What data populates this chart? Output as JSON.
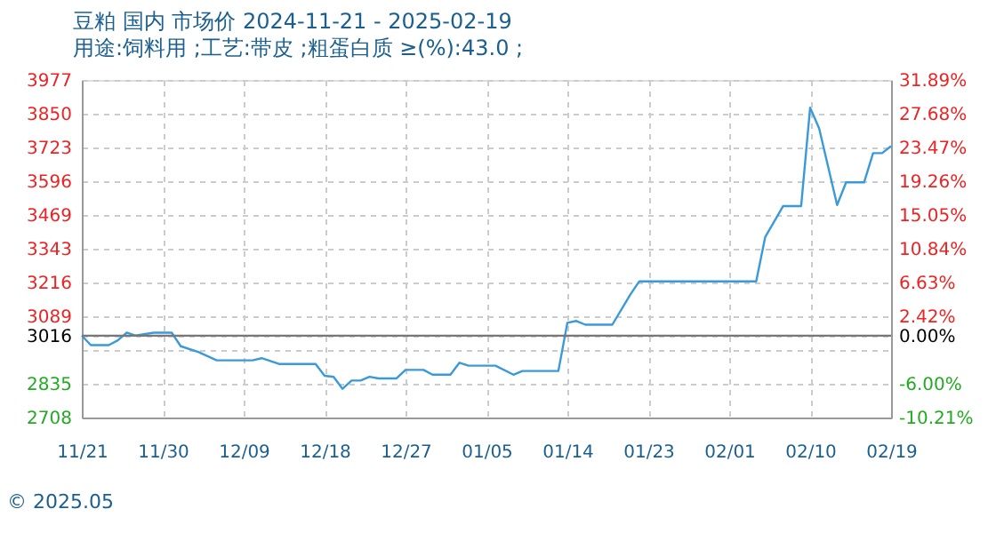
{
  "chart_data": {
    "type": "line",
    "title": "豆粕 国内 市场价 2024-11-21 - 2025-02-19",
    "subtitle": "用途:饲料用 ;工艺:带皮 ;粗蛋白质 ≥(%):43.0 ;",
    "annotations": [
      "© 2025.05"
    ],
    "x": [
      "2024-11-21",
      "2024-11-22",
      "2024-11-24",
      "2024-11-25",
      "2024-11-26",
      "2024-11-27",
      "2024-11-29",
      "2024-12-01",
      "2024-12-02",
      "2024-12-04",
      "2024-12-06",
      "2024-12-10",
      "2024-12-11",
      "2024-12-13",
      "2024-12-17",
      "2024-12-18",
      "2024-12-19",
      "2024-12-20",
      "2024-12-21",
      "2024-12-22",
      "2024-12-23",
      "2024-12-24",
      "2024-12-26",
      "2024-12-27",
      "2024-12-29",
      "2024-12-30",
      "2025-01-01",
      "2025-01-02",
      "2025-01-03",
      "2025-01-06",
      "2025-01-08",
      "2025-01-09",
      "2025-01-13",
      "2025-01-14",
      "2025-01-15",
      "2025-01-16",
      "2025-01-19",
      "2025-01-21",
      "2025-01-22",
      "2025-02-04",
      "2025-02-05",
      "2025-02-07",
      "2025-02-09",
      "2025-02-10",
      "2025-02-11",
      "2025-02-13",
      "2025-02-14",
      "2025-02-16",
      "2025-02-17",
      "2025-02-18",
      "2025-02-19"
    ],
    "series": [
      {
        "color": "#3a9ad9",
        "values": [
          3016,
          2980,
          2980,
          2998,
          3027,
          3016,
          3027,
          3027,
          2976,
          2954,
          2923,
          2923,
          2931,
          2909,
          2909,
          2865,
          2861,
          2816,
          2847,
          2847,
          2861,
          2855,
          2855,
          2887,
          2887,
          2869,
          2869,
          2914,
          2903,
          2903,
          2869,
          2883,
          2883,
          3064,
          3071,
          3057,
          3057,
          3170,
          3220,
          3220,
          3386,
          3503,
          3503,
          3873,
          3795,
          3507,
          3592,
          3592,
          3702,
          3702,
          3728
        ]
      }
    ],
    "xlim": [
      "2024-11-21",
      "2025-02-19"
    ],
    "xticks": [
      {
        "value": "2024-11-21",
        "label": "11/21"
      },
      {
        "value": "2024-11-30",
        "label": "11/30"
      },
      {
        "value": "2024-12-09",
        "label": "12/09"
      },
      {
        "value": "2024-12-18",
        "label": "12/18"
      },
      {
        "value": "2024-12-27",
        "label": "12/27"
      },
      {
        "value": "2025-01-05",
        "label": "01/05"
      },
      {
        "value": "2025-01-14",
        "label": "01/14"
      },
      {
        "value": "2025-01-23",
        "label": "01/23"
      },
      {
        "value": "2025-02-01",
        "label": "02/01"
      },
      {
        "value": "2025-02-10",
        "label": "02/10"
      },
      {
        "value": "2025-02-19",
        "label": "02/19"
      }
    ],
    "ylim": [
      2708,
      3977
    ],
    "yticks": [
      2708,
      2835,
      {
        "value": 2962,
        "label": null
      },
      3016,
      3089,
      3216,
      3343,
      3469,
      3596,
      3723,
      3850,
      3977
    ],
    "y2lim": [
      -10.21,
      31.89
    ],
    "y2ticks": [
      {
        "value": -10.21,
        "label": "-10.21%"
      },
      {
        "value": -6.0,
        "label": "-6.00%"
      },
      {
        "value": 0,
        "label": "0.00%"
      },
      {
        "value": 2.42,
        "label": "2.42%"
      },
      {
        "value": 6.63,
        "label": "6.63%"
      },
      {
        "value": 10.84,
        "label": "10.84%"
      },
      {
        "value": 15.05,
        "label": "15.05%"
      },
      {
        "value": 19.26,
        "label": "19.26%"
      },
      {
        "value": 23.47,
        "label": "23.47%"
      },
      {
        "value": 27.68,
        "label": "27.68%"
      },
      {
        "value": 31.89,
        "label": "31.89%"
      }
    ],
    "ref_lines": [
      {
        "axis": "y2",
        "value": 0,
        "color": "#777777"
      }
    ],
    "grid": true,
    "marker": "none",
    "line_style": "solid"
  }
}
